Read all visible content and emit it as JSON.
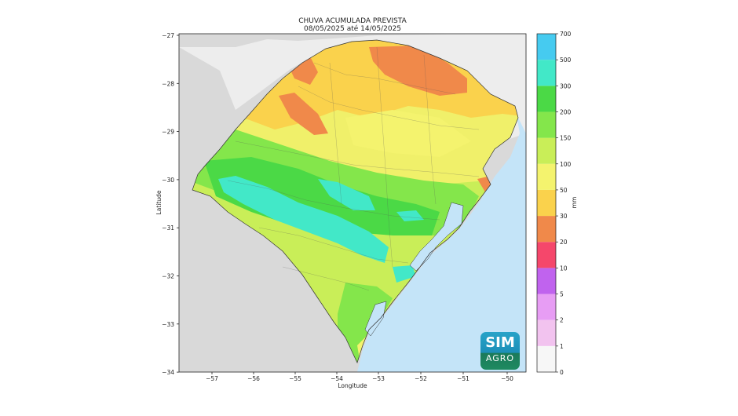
{
  "title": {
    "line1": "CHUVA ACUMULADA PREVISTA",
    "line2": "08/05/2025 até 14/05/2025"
  },
  "axes": {
    "xlabel": "Longitude",
    "ylabel": "Latitude",
    "xticks": [
      "−57",
      "−56",
      "−55",
      "−54",
      "−53",
      "−52",
      "−51",
      "−50"
    ],
    "yticks": [
      "−27",
      "−28",
      "−29",
      "−30",
      "−31",
      "−32",
      "−33",
      "−34"
    ]
  },
  "colorbar": {
    "unit": "mm",
    "levels": [
      "0",
      "1",
      "2",
      "5",
      "10",
      "20",
      "30",
      "50",
      "100",
      "150",
      "200",
      "300",
      "500",
      "700"
    ],
    "colors": [
      "#f7f7f7",
      "#f2c3ef",
      "#e79df4",
      "#c063ee",
      "#f5476b",
      "#f0894a",
      "#fad24c",
      "#f4f36e",
      "#c9ee58",
      "#84e64b",
      "#4bd946",
      "#42e8c8",
      "#46cbf0",
      "#4d6bc3",
      "#3f47a7"
    ]
  },
  "logo": {
    "line1": "SIM",
    "line2": "AGRO"
  },
  "colors": {
    "land_outside": "#d9d9d9",
    "ocean": "#c4e4f8",
    "uruguay_argentina": "#d6d6d6",
    "sc_state": "#ececec"
  }
}
